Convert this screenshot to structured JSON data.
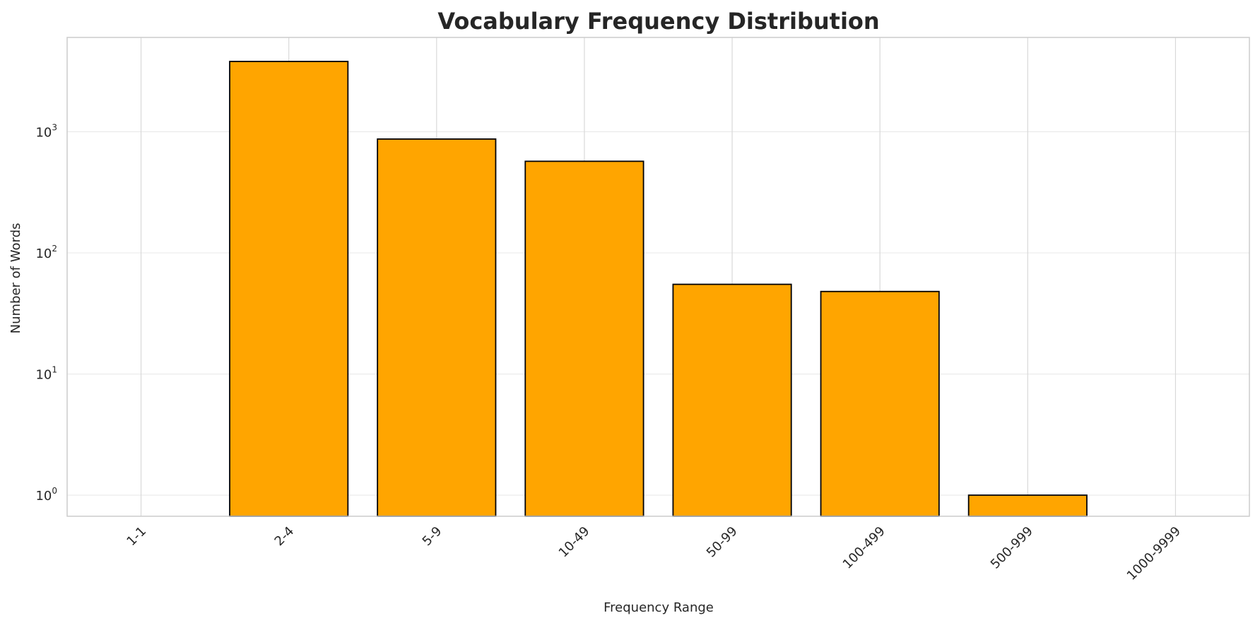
{
  "chart_data": {
    "type": "bar",
    "title": "Vocabulary Frequency Distribution",
    "xlabel": "Frequency Range",
    "ylabel": "Number of Words",
    "yscale": "log",
    "ylim": [
      0.67,
      6000
    ],
    "categories": [
      "1-1",
      "2-4",
      "5-9",
      "10-49",
      "50-99",
      "100-499",
      "500-999",
      "1000-9999"
    ],
    "values": [
      0,
      3800,
      870,
      570,
      55,
      48,
      1,
      0
    ],
    "y_ticks": [
      {
        "value": 1,
        "base": "10",
        "exp": "0"
      },
      {
        "value": 10,
        "base": "10",
        "exp": "1"
      },
      {
        "value": 100,
        "base": "10",
        "exp": "2"
      },
      {
        "value": 1000,
        "base": "10",
        "exp": "3"
      }
    ],
    "grid": true,
    "bar_color": "#FFA500",
    "bar_edge_color": "#000000",
    "grid_color": "#EBEBEB",
    "frame_color": "#CCCCCC"
  }
}
